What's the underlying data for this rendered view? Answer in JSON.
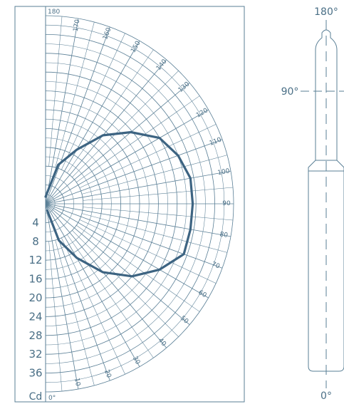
{
  "colors": {
    "grid": "#5a7f96",
    "curve": "#3d6482",
    "text": "#4a6f86"
  },
  "chart_data": {
    "type": "polar",
    "title": "",
    "unit_label": "Cd",
    "angle_ticks": [
      0,
      10,
      20,
      30,
      40,
      50,
      60,
      70,
      80,
      90,
      100,
      110,
      120,
      130,
      140,
      150,
      160,
      170,
      180
    ],
    "radial_ticks": [
      4,
      8,
      12,
      16,
      20,
      24,
      28,
      32,
      36
    ],
    "radial_max": 40,
    "series": [
      {
        "angles_deg": [
          180,
          162,
          150,
          140,
          130,
          120,
          110,
          100,
          90,
          80,
          70,
          60,
          50,
          40,
          30,
          20,
          14
        ],
        "cd": [
          1.5,
          8.7,
          13.3,
          19.0,
          23.7,
          28.0,
          30.0,
          31.3,
          31.3,
          31.3,
          31.3,
          28.0,
          24.0,
          19.0,
          13.3,
          8.3,
          1.5
        ]
      }
    ]
  },
  "lamp": {
    "top_label": "180°",
    "side_label": "90°",
    "bottom_label": "0°"
  }
}
